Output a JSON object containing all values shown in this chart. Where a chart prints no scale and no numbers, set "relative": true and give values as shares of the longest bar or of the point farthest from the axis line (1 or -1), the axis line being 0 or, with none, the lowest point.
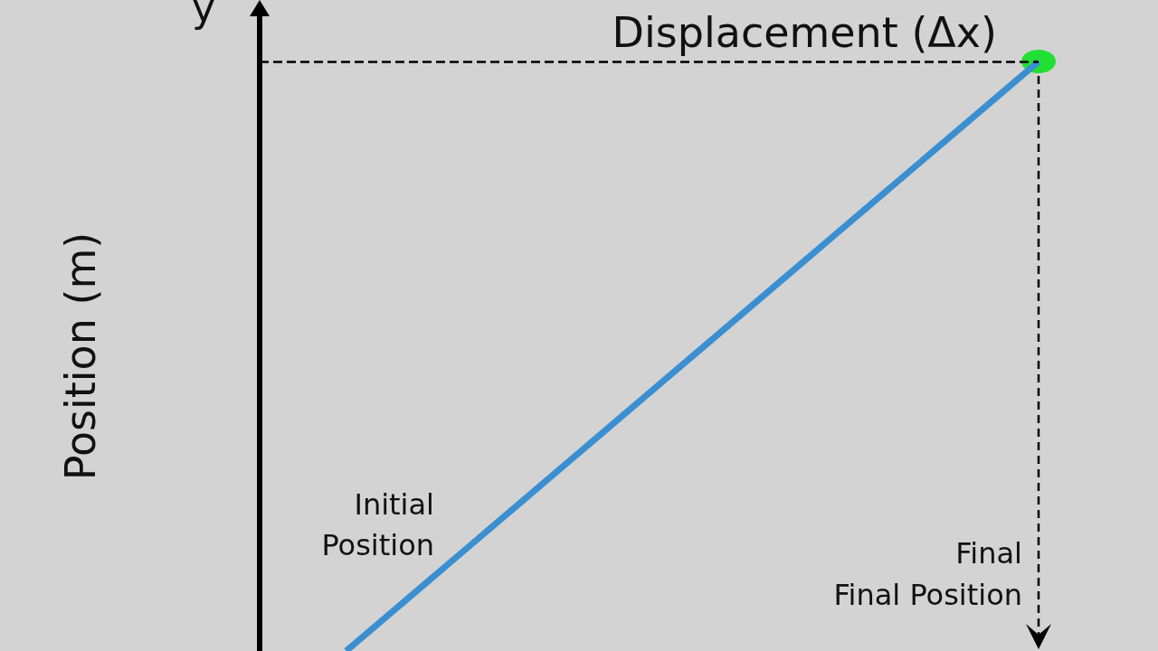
{
  "chart_data": {
    "type": "line",
    "relative": true,
    "ylabel": "Position (m)",
    "categories": [
      null,
      null,
      null,
      null,
      null,
      null,
      null,
      null,
      null,
      null
    ],
    "series": [
      {
        "color": "#3b8fd0",
        "values": [
          null,
          0,
          0.125,
          0.25,
          0.375,
          0.5,
          0.625,
          0.75,
          0.875,
          1
        ]
      }
    ],
    "marker": "none",
    "ref_lines": [
      {
        "axis": "y",
        "value": 1,
        "color": "#000000",
        "line_style": "dashed"
      }
    ],
    "annotations": [
      "y",
      "Displacement (Δx)",
      "Initial Position",
      "Final",
      "Final Position"
    ],
    "grid": false
  }
}
